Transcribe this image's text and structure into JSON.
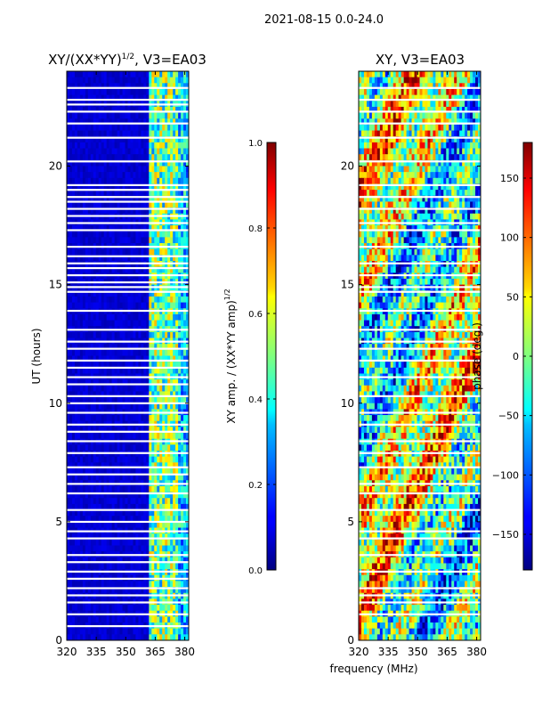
{
  "suptitle": "2021-08-15 0.0-24.0",
  "chart_data": [
    {
      "type": "heatmap",
      "title_main": "XY/(XX*YY)",
      "title_sup": "1/2",
      "title_tail": ", V3=EA03",
      "xlabel": "",
      "ylabel": "UT (hours)",
      "xlim": [
        320,
        382
      ],
      "ylim": [
        0,
        24
      ],
      "xticks": [
        "320",
        "335",
        "350",
        "365",
        "380"
      ],
      "xtick_values": [
        320,
        335,
        350,
        365,
        380
      ],
      "yticks": [
        "0",
        "5",
        "10",
        "15",
        "20"
      ],
      "ytick_values": [
        0,
        5,
        10,
        15,
        20
      ],
      "colorbar": {
        "label_main": "XY amp. / (XX*YY amp)",
        "label_sup": "1/2",
        "ticks": [
          "0.0",
          "0.2",
          "0.4",
          "0.6",
          "0.8",
          "1.0"
        ],
        "tick_values": [
          0.0,
          0.2,
          0.4,
          0.6,
          0.8,
          1.0
        ],
        "range": [
          0,
          1
        ]
      },
      "flagged_hours": [
        23.3,
        22.8,
        22.6,
        22.3,
        21.8,
        21.2,
        20.2,
        19.2,
        19.0,
        18.7,
        18.5,
        18.2,
        17.9,
        17.6,
        17.3,
        16.6,
        16.2,
        15.9,
        15.7,
        15.4,
        15.1,
        14.9,
        14.7,
        13.9,
        13.1,
        12.6,
        12.3,
        11.8,
        11.5,
        11.1,
        10.8,
        10.3,
        10.0,
        9.6,
        9.1,
        8.8,
        8.4,
        7.9,
        7.3,
        7.0,
        6.6,
        6.2,
        5.5,
        5.0,
        4.6,
        4.3,
        3.6,
        3.3,
        2.9,
        2.6,
        2.2,
        1.9,
        1.6,
        1.1,
        0.6
      ]
    },
    {
      "type": "heatmap",
      "title_main": "XY, V3=EA03",
      "xlabel": "frequency (MHz)",
      "ylabel": "",
      "xlim": [
        320,
        382
      ],
      "ylim": [
        0,
        24
      ],
      "xticks": [
        "320",
        "335",
        "350",
        "365",
        "380"
      ],
      "xtick_values": [
        320,
        335,
        350,
        365,
        380
      ],
      "yticks": [
        "0",
        "5",
        "10",
        "15",
        "20"
      ],
      "ytick_values": [
        0,
        5,
        10,
        15,
        20
      ],
      "colorbar": {
        "label_main": "phase (deg.)",
        "ticks": [
          "150",
          "100",
          "50",
          "0",
          "−50",
          "−100",
          "−150"
        ],
        "tick_values": [
          150,
          100,
          50,
          0,
          -50,
          -100,
          -150
        ],
        "range": [
          -180,
          180
        ]
      },
      "flagged_hours": [
        23.3,
        22.8,
        22.3,
        21.8,
        21.2,
        20.2,
        19.2,
        18.7,
        18.2,
        17.6,
        17.3,
        16.6,
        15.9,
        15.4,
        14.9,
        14.7,
        13.9,
        13.1,
        12.6,
        12.3,
        11.8,
        11.1,
        10.3,
        9.6,
        9.1,
        8.4,
        7.9,
        7.3,
        6.6,
        6.2,
        5.5,
        4.6,
        4.3,
        3.6,
        2.9,
        2.2,
        1.9,
        1.6,
        1.1
      ]
    }
  ]
}
